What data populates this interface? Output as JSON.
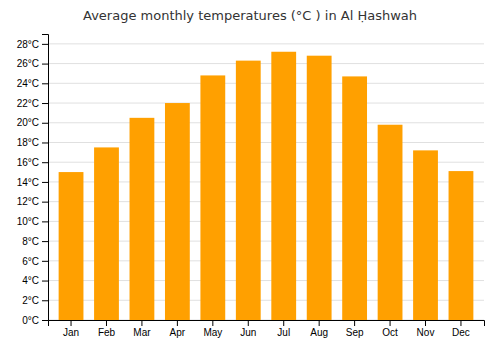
{
  "chart_data": {
    "type": "bar",
    "title": "Average monthly temperatures (°C ) in Al Ḥashwah",
    "categories": [
      "Jan",
      "Feb",
      "Mar",
      "Apr",
      "May",
      "Jun",
      "Jul",
      "Aug",
      "Sep",
      "Oct",
      "Nov",
      "Dec"
    ],
    "values": [
      15.0,
      17.5,
      20.5,
      22.0,
      24.8,
      26.3,
      27.2,
      26.8,
      24.7,
      19.8,
      17.2,
      15.1
    ],
    "color": "#FFA000",
    "ylim": [
      0,
      29
    ],
    "yticks": [
      {
        "value": 0,
        "label": "0°C"
      },
      {
        "value": 2,
        "label": "2°C"
      },
      {
        "value": 4,
        "label": "4°C"
      },
      {
        "value": 6,
        "label": "6°C"
      },
      {
        "value": 8,
        "label": "8°C"
      },
      {
        "value": 10,
        "label": "10°C"
      },
      {
        "value": 12,
        "label": "12°C"
      },
      {
        "value": 14,
        "label": "14°C"
      },
      {
        "value": 16,
        "label": "16°C"
      },
      {
        "value": 18,
        "label": "18°C"
      },
      {
        "value": 20,
        "label": "20°C"
      },
      {
        "value": 22,
        "label": "22°C"
      },
      {
        "value": 24,
        "label": "24°C"
      },
      {
        "value": 26,
        "label": "26°C"
      },
      {
        "value": 28,
        "label": "28°C"
      }
    ],
    "grid": true
  }
}
